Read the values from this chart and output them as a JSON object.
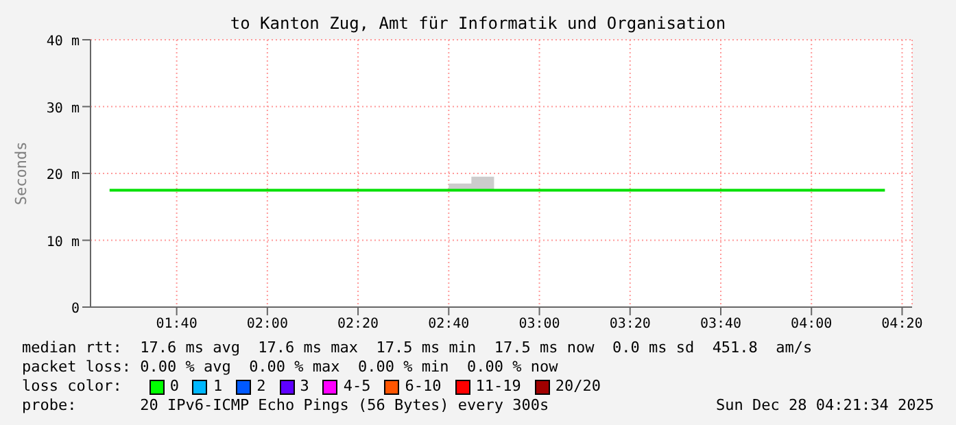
{
  "chart_data": {
    "type": "line",
    "title": "to Kanton Zug, Amt für Informatik und Organisation",
    "ylabel": "Seconds",
    "x": [
      1.42,
      2.6667,
      2.75,
      2.8333,
      4.27
    ],
    "series": [
      {
        "color": "#00e000",
        "values": [
          17.5,
          17.5,
          17.5,
          17.5,
          17.5
        ],
        "lower": [
          17.5,
          17.5,
          17.5,
          17.5,
          17.5
        ],
        "upper": [
          17.5,
          18.5,
          19.5,
          17.5,
          17.5
        ]
      }
    ],
    "xlim": [
      1.35,
      4.37
    ],
    "xticks": [
      {
        "value": 1.6667,
        "label": "01:40"
      },
      {
        "value": 2,
        "label": "02:00"
      },
      {
        "value": 2.3333,
        "label": "02:20"
      },
      {
        "value": 2.6667,
        "label": "02:40"
      },
      {
        "value": 3,
        "label": "03:00"
      },
      {
        "value": 3.3333,
        "label": "03:20"
      },
      {
        "value": 3.6667,
        "label": "03:40"
      },
      {
        "value": 4,
        "label": "04:00"
      },
      {
        "value": 4.3333,
        "label": "04:20"
      }
    ],
    "ylim": [
      0,
      40
    ],
    "yticks": [
      0,
      {
        "value": 10,
        "label": "10 m"
      },
      {
        "value": 20,
        "label": "20 m"
      },
      {
        "value": 30,
        "label": "30 m"
      },
      {
        "value": 40,
        "label": "40 m"
      }
    ],
    "grid": true,
    "marker": "none",
    "line_style": "solid",
    "annotations": [
      "median rtt:  17.6 ms avg  17.6 ms max  17.5 ms min  17.5 ms now  0.0 ms sd  451.8  am/s",
      "packet loss: 0.00 % avg  0.00 % max  0.00 % min  0.00 % now",
      "loss color:",
      "0",
      "1",
      "2",
      "3",
      "4-5",
      "6-10",
      "11-19",
      "20/20",
      "probe:       20 IPv6-ICMP Echo Pings (56 Bytes) every 300s",
      "Sun Dec 28 04:21:34 2025"
    ]
  }
}
